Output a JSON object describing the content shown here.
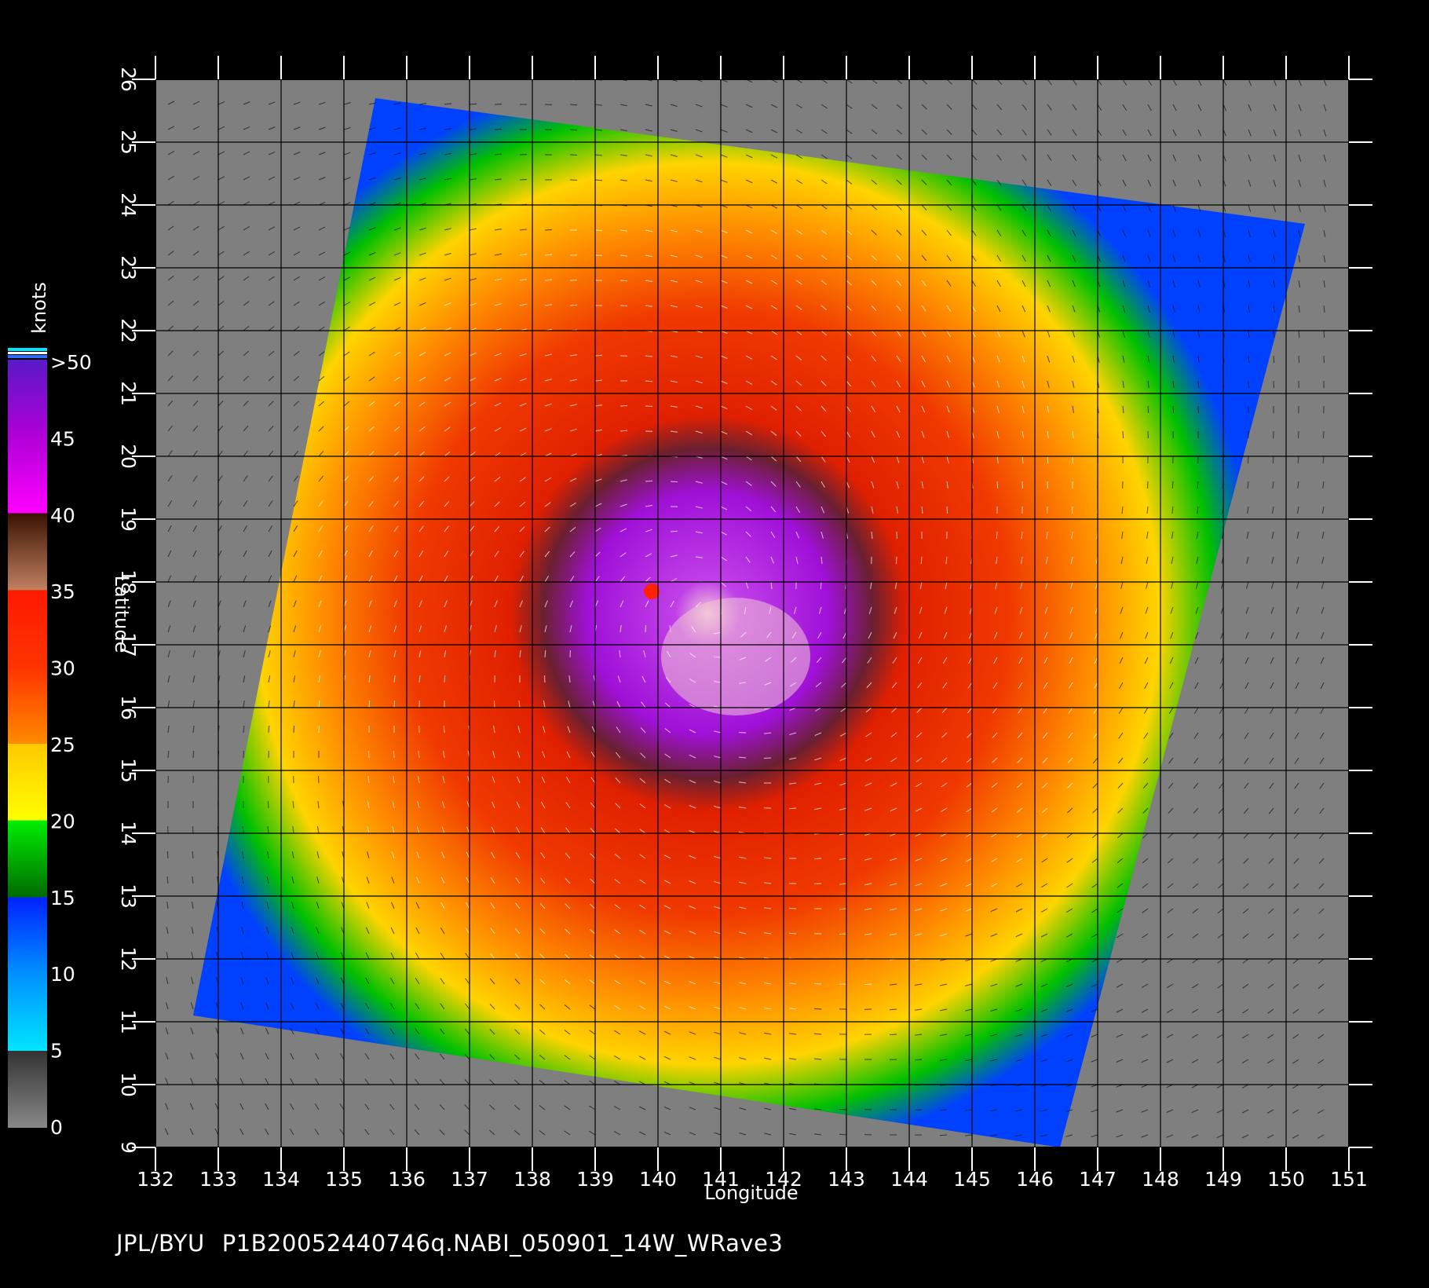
{
  "map": {
    "xlabel": "Longitude",
    "ylabel": "Latitude",
    "lon_ticks": [
      "132",
      "133",
      "134",
      "135",
      "136",
      "137",
      "138",
      "139",
      "140",
      "141",
      "142",
      "143",
      "144",
      "145",
      "146",
      "147",
      "148",
      "149",
      "150",
      "151"
    ],
    "lat_ticks": [
      "9",
      "10",
      "11",
      "12",
      "13",
      "14",
      "15",
      "16",
      "17",
      "18",
      "19",
      "20",
      "21",
      "22",
      "23",
      "24",
      "25",
      "26"
    ],
    "lon_range": [
      132,
      151
    ],
    "lat_range": [
      9,
      26
    ],
    "swath_corners": [
      [
        135.5,
        25.7
      ],
      [
        150.3,
        23.7
      ],
      [
        146.4,
        9.0
      ],
      [
        132.6,
        11.1
      ]
    ],
    "storm_center": [
      140.8,
      17.5
    ],
    "background_color": "#7f7f7f"
  },
  "colorbar": {
    "title": "knots",
    "labels": [
      ">50",
      "45",
      "40",
      "35",
      "30",
      "25",
      "20",
      "15",
      "10",
      "5",
      "0"
    ],
    "stops": [
      {
        "knots": 0,
        "color": "#888888"
      },
      {
        "knots": 5,
        "color": "#333333"
      },
      {
        "knots": 5.01,
        "color": "#00e5ff"
      },
      {
        "knots": 10,
        "color": "#0090ff"
      },
      {
        "knots": 15,
        "color": "#0022ff"
      },
      {
        "knots": 15.01,
        "color": "#006a00"
      },
      {
        "knots": 20,
        "color": "#00ee00"
      },
      {
        "knots": 20.01,
        "color": "#ffff00"
      },
      {
        "knots": 25,
        "color": "#ffc800"
      },
      {
        "knots": 25.01,
        "color": "#ff8a00"
      },
      {
        "knots": 30,
        "color": "#ff3300"
      },
      {
        "knots": 35,
        "color": "#ff1a00"
      },
      {
        "knots": 35.01,
        "color": "#c08060"
      },
      {
        "knots": 40,
        "color": "#3a1200"
      },
      {
        "knots": 40.01,
        "color": "#ff00ff"
      },
      {
        "knots": 45,
        "color": "#b000d8"
      },
      {
        "knots": 50,
        "color": "#5a18c8"
      }
    ]
  },
  "footer": {
    "source": "JPL/BYU",
    "filename": "P1B20052440746q.NABI_050901_14W_WRave3"
  }
}
